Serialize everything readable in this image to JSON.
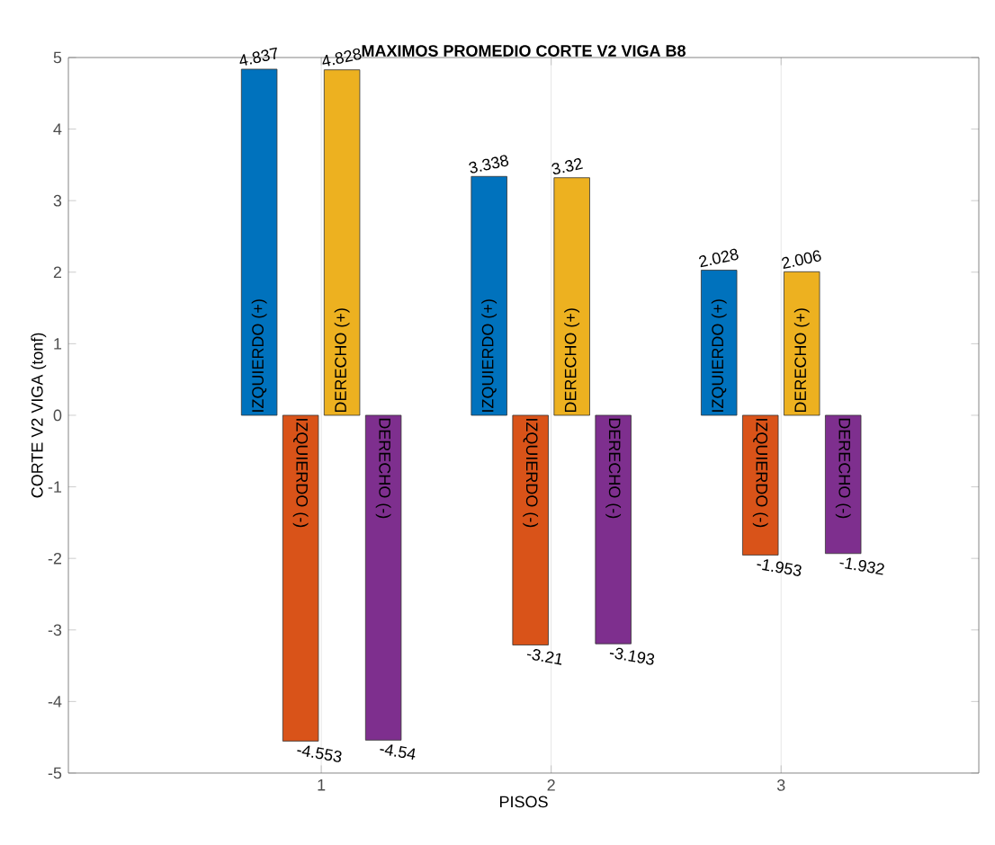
{
  "chart_data": {
    "type": "bar",
    "title": "MAXIMOS PROMEDIO  CORTE V2 VIGA B8",
    "xlabel": "PISOS",
    "ylabel": "CORTE V2 VIGA (tonf)",
    "categories": [
      "1",
      "2",
      "3"
    ],
    "series": [
      {
        "name": "IZQUIERDO (+)",
        "color": "#0072bd",
        "values": [
          4.837,
          3.338,
          2.028
        ]
      },
      {
        "name": "IZQUIERDO (-)",
        "color": "#d95319",
        "values": [
          -4.553,
          -3.21,
          -1.953
        ]
      },
      {
        "name": "DERECHO (+)",
        "color": "#edb120",
        "values": [
          4.828,
          3.32,
          2.006
        ]
      },
      {
        "name": "DERECHO (-)",
        "color": "#7e2f8e",
        "values": [
          -4.54,
          -3.193,
          -1.932
        ]
      }
    ],
    "ylim": [
      -5,
      5
    ],
    "yticks": [
      -5,
      -4,
      -3,
      -2,
      -1,
      0,
      1,
      2,
      3,
      4,
      5
    ],
    "grid": "x",
    "data_labels": true
  }
}
